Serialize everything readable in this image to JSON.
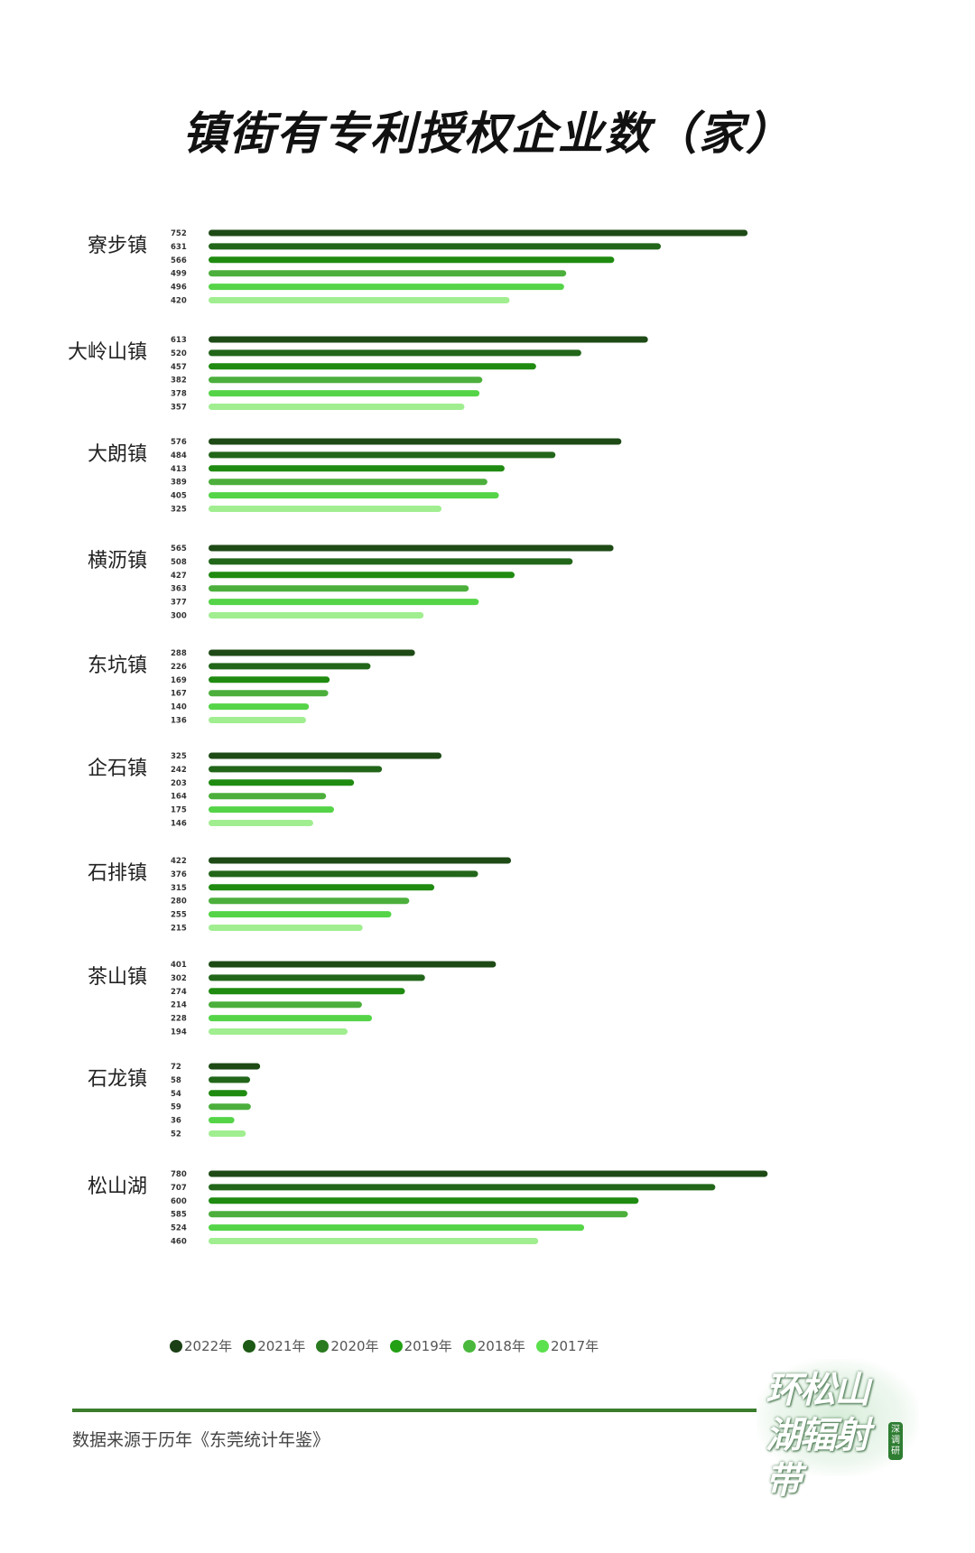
{
  "chart_data": {
    "type": "bar",
    "orientation": "horizontal",
    "title": "镇街有专利授权企业数（家）",
    "categories": [
      "寮步镇",
      "大岭山镇",
      "大朗镇",
      "横沥镇",
      "东坑镇",
      "企石镇",
      "石排镇",
      "茶山镇",
      "石龙镇",
      "松山湖"
    ],
    "series": [
      {
        "name": "2022年",
        "color": "#1e4a16",
        "values": [
          752,
          613,
          576,
          565,
          288,
          325,
          422,
          401,
          72,
          780
        ]
      },
      {
        "name": "2021年",
        "color": "#22661a",
        "values": [
          631,
          520,
          484,
          508,
          226,
          242,
          376,
          302,
          58,
          707
        ]
      },
      {
        "name": "2020年",
        "color": "#1f8b10",
        "values": [
          566,
          457,
          413,
          427,
          169,
          203,
          315,
          274,
          54,
          600
        ]
      },
      {
        "name": "2019年",
        "color": "#4caf3c",
        "values": [
          499,
          382,
          389,
          363,
          167,
          164,
          280,
          214,
          59,
          585
        ]
      },
      {
        "name": "2018年",
        "color": "#55d448",
        "values": [
          496,
          378,
          405,
          377,
          140,
          175,
          255,
          228,
          36,
          524
        ]
      },
      {
        "name": "2017年",
        "color": "#a0ee90",
        "values": [
          420,
          357,
          325,
          300,
          136,
          146,
          215,
          194,
          52,
          460
        ]
      }
    ],
    "legend_colors": [
      "#1b3f15",
      "#1d5a15",
      "#2a7a20",
      "#23a014",
      "#4ab83c",
      "#5be04e"
    ],
    "xlim": [
      0,
      800
    ],
    "grid": false,
    "legend_position": "bottom-left"
  },
  "footer": {
    "source": "数据来源于历年《东莞统计年鉴》",
    "logo_text": "环松山湖辐射带",
    "logo_badge": "深调研"
  }
}
